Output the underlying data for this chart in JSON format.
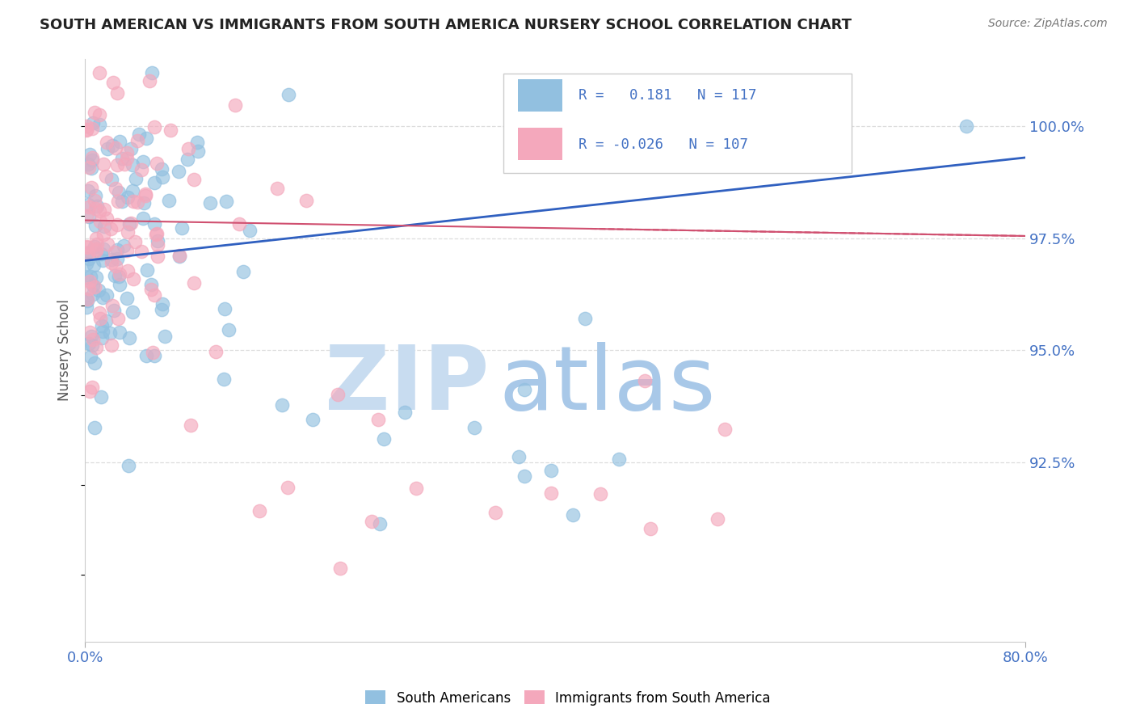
{
  "title": "SOUTH AMERICAN VS IMMIGRANTS FROM SOUTH AMERICA NURSERY SCHOOL CORRELATION CHART",
  "source": "Source: ZipAtlas.com",
  "ylabel": "Nursery School",
  "R_blue": 0.181,
  "N_blue": 117,
  "R_pink": -0.026,
  "N_pink": 107,
  "blue_color": "#92C0E0",
  "pink_color": "#F4A8BC",
  "trend_blue": "#3060C0",
  "trend_pink": "#D05070",
  "watermark_zip_color": "#C8DCF0",
  "watermark_atlas_color": "#A8C8E8",
  "background_color": "#FFFFFF",
  "xlim": [
    0.0,
    0.8
  ],
  "ylim": [
    88.5,
    101.5
  ],
  "yticks": [
    92.5,
    95.0,
    97.5,
    100.0
  ],
  "ytick_labels": [
    "92.5%",
    "95.0%",
    "97.5%",
    "100.0%"
  ],
  "xtick_labels": [
    "0.0%",
    "80.0%"
  ],
  "tick_color": "#4472C4",
  "grid_color": "#DDDDDD",
  "seed_blue": 42,
  "seed_pink": 99
}
